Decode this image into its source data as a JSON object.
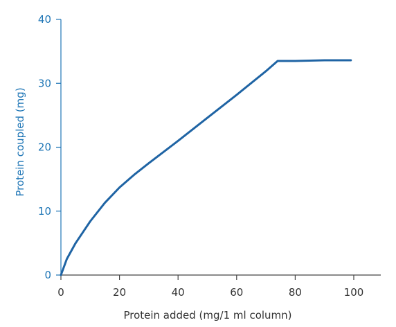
{
  "colors": {
    "line": "#1f64a4",
    "y_axis": "#1f76b6",
    "x_axis": "#444444",
    "y_text": "#1f76b6",
    "x_text": "#333333"
  },
  "chart_data": {
    "type": "line",
    "title": "",
    "xlabel": "Protein added (mg/1 ml column)",
    "ylabel": "Protein coupled (mg)",
    "xlim": [
      0,
      110
    ],
    "ylim": [
      0,
      40
    ],
    "x_ticks": [
      0,
      20,
      40,
      60,
      80,
      100
    ],
    "y_ticks": [
      0,
      10,
      20,
      30,
      40
    ],
    "grid": false,
    "series": [
      {
        "x": [
          0,
          2,
          5,
          10,
          15,
          20,
          25,
          30,
          40,
          50,
          60,
          70,
          74,
          80,
          90,
          99
        ],
        "values": [
          0,
          2.5,
          5.0,
          8.4,
          11.3,
          13.7,
          15.7,
          17.5,
          21.0,
          24.6,
          28.2,
          31.9,
          33.5,
          33.5,
          33.6,
          33.6
        ]
      }
    ]
  }
}
